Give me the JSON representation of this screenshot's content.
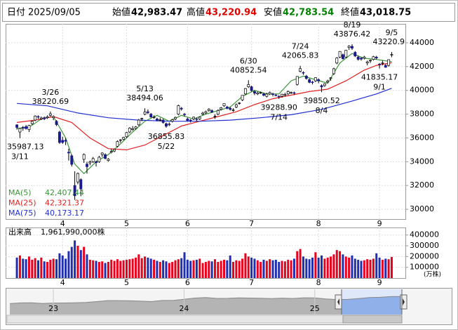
{
  "header": {
    "date_label": "日付",
    "date": "2025/09/05",
    "items": [
      {
        "label": "始値",
        "value": "42,983.47",
        "color": "#000000"
      },
      {
        "label": "高値",
        "value": "43,220.94",
        "color": "#e00000"
      },
      {
        "label": "安値",
        "value": "42,783.54",
        "color": "#008000"
      },
      {
        "label": "終値",
        "value": "43,018.75",
        "color": "#000000"
      }
    ]
  },
  "chart_data": [
    {
      "type": "candlestick",
      "xlim": [
        -3.7,
        127.5
      ],
      "ylim": [
        29180,
        45590
      ],
      "yticks": [
        30000,
        32000,
        34000,
        36000,
        38000,
        40000,
        42000,
        44000
      ],
      "xticks": [
        {
          "value": 15,
          "label": "4"
        },
        {
          "value": 36,
          "label": "5"
        },
        {
          "value": 56,
          "label": "6"
        },
        {
          "value": 77,
          "label": "7"
        },
        {
          "value": 99,
          "label": "8"
        },
        {
          "value": 119,
          "label": "9"
        }
      ],
      "grid": true,
      "up_color": "#ffffff",
      "down_color": "#1a1a8c",
      "open": [
        37100,
        36500,
        36900,
        36950,
        36700,
        37200,
        37500,
        37800,
        37600,
        37700,
        37700,
        37900,
        37700,
        37400,
        36500,
        35800,
        35800,
        34800,
        34500,
        32000,
        32300,
        32500,
        34200,
        33800,
        33900,
        34000,
        34000,
        34000,
        34600,
        34600,
        34100,
        34800,
        34900,
        35300,
        35800,
        35900,
        36100,
        36500,
        36700,
        36800,
        37100,
        37600,
        38000,
        38200,
        38000,
        37700,
        37600,
        37500,
        37500,
        37200,
        37100,
        37400,
        37600,
        38000,
        38500,
        38000,
        37600,
        37500,
        37600,
        37600,
        37600,
        38000,
        38100,
        38300,
        38300,
        37800,
        38000,
        38400,
        38700,
        38600,
        38500,
        38300,
        38600,
        38900,
        39200,
        39700,
        40300,
        40300,
        39900,
        39700,
        39800,
        39700,
        39500,
        39700,
        39700,
        39600,
        39500,
        39500,
        39600,
        39700,
        39800,
        39800,
        40500,
        41600,
        41500,
        41200,
        40900,
        40700,
        40800,
        40900,
        40400,
        40400,
        40700,
        41000,
        41400,
        42300,
        42800,
        43000,
        42800,
        43600,
        43700,
        43200,
        42800,
        42700,
        42700,
        42300,
        42500,
        42600,
        42800,
        42200,
        42300,
        42100,
        42100,
        42983.47
      ],
      "high": [
        37150,
        36800,
        37000,
        37100,
        37100,
        37450,
        37900,
        37900,
        37800,
        37800,
        37900,
        38220.69,
        37900,
        37500,
        36600,
        36100,
        36000,
        35100,
        34600,
        33200,
        33100,
        32600,
        34700,
        34000,
        34100,
        34400,
        34100,
        34500,
        34800,
        34700,
        34300,
        35100,
        35100,
        35800,
        35900,
        36100,
        36500,
        36900,
        37000,
        37000,
        37600,
        37700,
        38494.06,
        38400,
        38100,
        37900,
        37700,
        37700,
        37600,
        37300,
        37300,
        37600,
        37800,
        38800,
        38600,
        38100,
        37700,
        37600,
        37800,
        37700,
        37800,
        38200,
        38300,
        38500,
        38400,
        38000,
        38400,
        38600,
        38900,
        38700,
        38600,
        38500,
        38900,
        39000,
        39600,
        40200,
        40852.54,
        40400,
        40000,
        39900,
        39900,
        39800,
        39800,
        39900,
        39800,
        39700,
        39600,
        39700,
        39800,
        40000,
        39900,
        39900,
        41200,
        42065.83,
        41600,
        41300,
        41000,
        40800,
        41100,
        41000,
        40500,
        40600,
        40900,
        41100,
        41900,
        42800,
        43300,
        43100,
        43400,
        43800,
        43876.42,
        43300,
        42900,
        42800,
        42900,
        42500,
        42600,
        42900,
        42900,
        42300,
        42500,
        42200,
        42600,
        43220.94
      ],
      "low": [
        36700,
        35987.13,
        36600,
        36700,
        36500,
        37100,
        37400,
        37600,
        37500,
        37500,
        37600,
        37800,
        37500,
        37000,
        35500,
        35500,
        35400,
        34100,
        33600,
        30792,
        32100,
        31100,
        33900,
        33000,
        33700,
        33900,
        33600,
        33900,
        34400,
        34200,
        34000,
        34700,
        34800,
        35200,
        35600,
        35800,
        36000,
        36400,
        36600,
        36700,
        37000,
        37400,
        37900,
        38000,
        37700,
        37600,
        37400,
        37400,
        37200,
        36855.83,
        37000,
        37300,
        37500,
        37900,
        38300,
        37800,
        37400,
        37300,
        37500,
        37400,
        37500,
        37900,
        38000,
        38200,
        38100,
        37600,
        37900,
        38300,
        38600,
        38400,
        38300,
        38200,
        38500,
        38800,
        39100,
        39600,
        40200,
        39900,
        39600,
        39600,
        39700,
        39500,
        39400,
        39600,
        39500,
        39500,
        39288.9,
        39400,
        39500,
        39600,
        39700,
        39600,
        40400,
        41500,
        41300,
        40900,
        40600,
        40500,
        40700,
        40600,
        39850.52,
        40300,
        40600,
        40800,
        41300,
        42200,
        42700,
        42600,
        42700,
        43400,
        43400,
        42800,
        42500,
        42500,
        42600,
        42100,
        42300,
        42500,
        42600,
        41835.17,
        42100,
        41900,
        42000,
        42783.54
      ],
      "close": [
        36887,
        36793,
        36819,
        36790,
        37053,
        37396,
        37845,
        37751,
        37677,
        37608,
        37780,
        38027,
        37799,
        37120,
        35617,
        35624,
        35725,
        34735,
        33780,
        31136,
        33012,
        31714,
        34609,
        33585,
        33982,
        34267,
        33920,
        34377,
        34730,
        34279,
        34220,
        34868,
        35039,
        35705,
        35839,
        36045,
        36452,
        36830,
        36779,
        36928,
        37503,
        37644,
        38183,
        38128,
        37755,
        37753,
        37498,
        37529,
        37299,
        36985,
        37160,
        37532,
        37724,
        38722,
        38432,
        37965,
        37470,
        37446,
        37747,
        37554,
        37741,
        38089,
        38211,
        38421,
        38173,
        37834,
        38311,
        38536,
        38885,
        38488,
        38403,
        38354,
        38790,
        38942,
        39584,
        40150,
        40487,
        39986,
        39762,
        39785,
        39810,
        39587,
        39688,
        39821,
        39646,
        39569,
        39459,
        39678,
        39663,
        39901,
        39819,
        39774,
        41171,
        41826,
        41456,
        40998,
        40674,
        40654,
        41069,
        40799,
        40290,
        40549,
        40794,
        41059,
        41820,
        42718,
        43274,
        42649,
        43378,
        43714,
        43546,
        42888,
        42610,
        42633,
        42807,
        42394,
        42520,
        42829,
        42718,
        42188,
        42310,
        41938,
        42580,
        43018.75
      ],
      "lines": [
        {
          "name": "MA(5)",
          "color": "#3c963c",
          "last_label": "42,407.44",
          "x": [
            0,
            4,
            8,
            12,
            16,
            19,
            22,
            26,
            30,
            34,
            38,
            42,
            46,
            50,
            54,
            58,
            62,
            66,
            70,
            74,
            78,
            82,
            86,
            90,
            94,
            98,
            102,
            106,
            110,
            114,
            118,
            123
          ],
          "values": [
            36800,
            36900,
            37600,
            37800,
            36000,
            33800,
            33000,
            34000,
            34600,
            35500,
            36500,
            37400,
            37900,
            37400,
            37900,
            37600,
            38000,
            38300,
            38600,
            39500,
            40000,
            39700,
            39700,
            40800,
            41200,
            40900,
            40600,
            42300,
            43100,
            42700,
            42600,
            42407.44
          ]
        },
        {
          "name": "MA(25)",
          "color": "#e02020",
          "last_label": "42,321.37",
          "x": [
            0,
            6,
            12,
            18,
            24,
            30,
            36,
            42,
            48,
            54,
            60,
            66,
            72,
            78,
            84,
            90,
            96,
            102,
            108,
            114,
            118,
            123
          ],
          "values": [
            37300,
            37500,
            37800,
            37300,
            36000,
            35100,
            35000,
            35400,
            36200,
            37000,
            37400,
            37800,
            38200,
            38800,
            39300,
            39600,
            39900,
            40100,
            40800,
            41700,
            42100,
            42321.37
          ]
        },
        {
          "name": "MA(75)",
          "color": "#2030d0",
          "last_label": "40,173.17",
          "x": [
            0,
            10,
            20,
            30,
            40,
            50,
            60,
            70,
            80,
            90,
            100,
            110,
            118,
            123
          ],
          "values": [
            38900,
            38700,
            38100,
            37700,
            37500,
            37400,
            37400,
            37500,
            37700,
            37950,
            38400,
            39100,
            39700,
            40173.17
          ]
        }
      ],
      "annotations": [
        {
          "date": "3/26",
          "index": 11,
          "value": 38220.69
        },
        {
          "date": "3/11",
          "index": 1,
          "value": 35987.13
        },
        {
          "date": "5/13",
          "index": 42,
          "value": 38494.06
        },
        {
          "date": "5/22",
          "index": 49,
          "value": 36855.83
        },
        {
          "date": "6/30",
          "index": 76,
          "value": 40852.54
        },
        {
          "date": "7/14",
          "index": 86,
          "value": {
            "value": 39288.9,
            "label": "39288.90"
          }
        },
        {
          "date": "7/24",
          "index": 93,
          "value": 42065.83
        },
        {
          "date": "8/4",
          "index": 100,
          "value": 39850.52
        },
        {
          "date": "8/19",
          "index": 110,
          "value": 43876.42
        },
        {
          "date": "9/5",
          "index": 123,
          "value": 43220.9
        },
        {
          "date": "9/1",
          "index": 119,
          "value": 41835.17
        }
      ]
    },
    {
      "type": "bar",
      "title": "出来高",
      "total_label": "1,961,990,000株",
      "unit": "(万株)",
      "xlim": [
        -3.7,
        127.5
      ],
      "ylim": [
        0,
        470000
      ],
      "yticks": [
        100000,
        200000,
        300000,
        400000
      ],
      "xticks": [
        {
          "value": 15,
          "label": "4"
        },
        {
          "value": 36,
          "label": "5"
        },
        {
          "value": 56,
          "label": "6"
        },
        {
          "value": 77,
          "label": "7"
        },
        {
          "value": 99,
          "label": "8"
        },
        {
          "value": 119,
          "label": "9"
        }
      ],
      "up_color": "#e8001c",
      "down_color": "#1f2fb0",
      "values": [
        190000,
        210000,
        180000,
        175000,
        200000,
        170000,
        185000,
        165000,
        190000,
        155000,
        150000,
        170000,
        180000,
        175000,
        230000,
        210000,
        180000,
        250000,
        290000,
        350000,
        300000,
        260000,
        290000,
        220000,
        170000,
        165000,
        160000,
        150000,
        155000,
        140000,
        150000,
        170000,
        160000,
        175000,
        160000,
        165000,
        170000,
        175000,
        180000,
        190000,
        220000,
        185000,
        200000,
        190000,
        180000,
        170000,
        160000,
        150000,
        165000,
        155000,
        140000,
        150000,
        165000,
        175000,
        185000,
        240000,
        170000,
        160000,
        165000,
        170000,
        180000,
        140000,
        150000,
        160000,
        155000,
        175000,
        150000,
        160000,
        170000,
        165000,
        210000,
        150000,
        165000,
        160000,
        180000,
        230000,
        200000,
        190000,
        180000,
        165000,
        150000,
        170000,
        160000,
        175000,
        165000,
        170000,
        150000,
        160000,
        155000,
        170000,
        165000,
        180000,
        250000,
        270000,
        200000,
        180000,
        175000,
        190000,
        240000,
        190000,
        210000,
        180000,
        190000,
        200000,
        220000,
        260000,
        250000,
        220000,
        200000,
        190000,
        210000,
        180000,
        170000,
        160000,
        165000,
        175000,
        170000,
        180000,
        230000,
        190000,
        170000,
        180000,
        175000,
        196199
      ]
    },
    {
      "type": "area",
      "color": "#b4b4b4",
      "window_color": "#8fb0e8",
      "xlim": [
        0,
        36
      ],
      "ylim": [
        0,
        60000
      ],
      "xticks": [
        {
          "value": 4,
          "label": "23"
        },
        {
          "value": 16,
          "label": "24"
        },
        {
          "value": 28,
          "label": "25"
        }
      ],
      "values": [
        25937,
        27587,
        27969,
        26095,
        27327,
        27446,
        28041,
        28856,
        30888,
        33189,
        33172,
        32619,
        31858,
        30859,
        33487,
        33464,
        36287,
        39166,
        40369,
        38406,
        38488,
        39583,
        39102,
        38648,
        37920,
        39081,
        38208,
        39894,
        39572,
        37156,
        35618,
        36045,
        37965,
        40487,
        41069,
        42718,
        43018
      ]
    }
  ]
}
